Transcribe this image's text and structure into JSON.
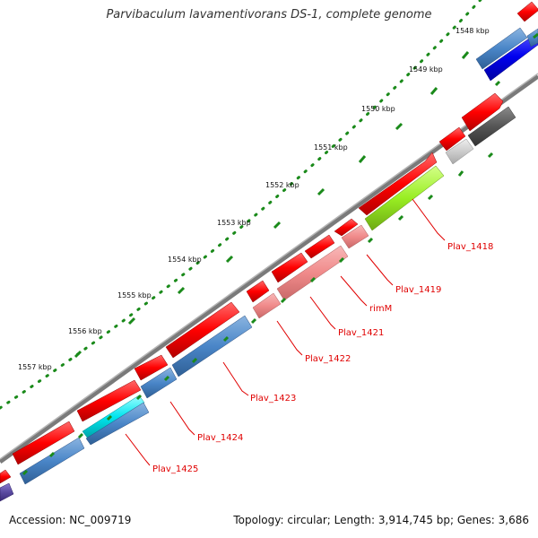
{
  "map": {
    "title": "Parvibaculum lavamentivorans DS-1, complete genome",
    "accession": "Accession: NC_009719",
    "summary": "Topology: circular; Length: 3,914,745 bp; Genes: 3,686"
  },
  "colors": {
    "backbone": "#808080",
    "tick": "#1a8a1a",
    "label": "#e00000",
    "leader": "#e00000"
  },
  "kbp_labels": [
    "1548 kbp",
    "1549 kbp",
    "1550 kbp",
    "1551 kbp",
    "1552 kbp",
    "1553 kbp",
    "1554 kbp",
    "1555 kbp",
    "1556 kbp",
    "1557 kbp"
  ],
  "genes": [
    {
      "name": "Plav_1418",
      "product_color": "#99ee22"
    },
    {
      "name": "Plav_1419",
      "product_color": "#f08a8a"
    },
    {
      "name": "rimM",
      "product_color": "#f08a8a"
    },
    {
      "name": "Plav_1421",
      "product_color": "#f08a8a"
    },
    {
      "name": "Plav_1422",
      "product_color": "#f08a8a"
    },
    {
      "name": "Plav_1423",
      "product_color": "#4a86c8"
    },
    {
      "name": "Plav_1424",
      "product_color": "#4a86c8"
    },
    {
      "name": "Plav_1425",
      "product_color": "#4a86c8"
    }
  ],
  "legend_colors": {
    "cds_forward": "#ff0000",
    "cds_reverse": "#ff0000",
    "blue_block": "#0000ee",
    "cyan_block": "#00e5ee",
    "dark_gray_block": "#555555",
    "light_gray_block": "#cccccc",
    "purple_block": "#5a4aa0"
  }
}
